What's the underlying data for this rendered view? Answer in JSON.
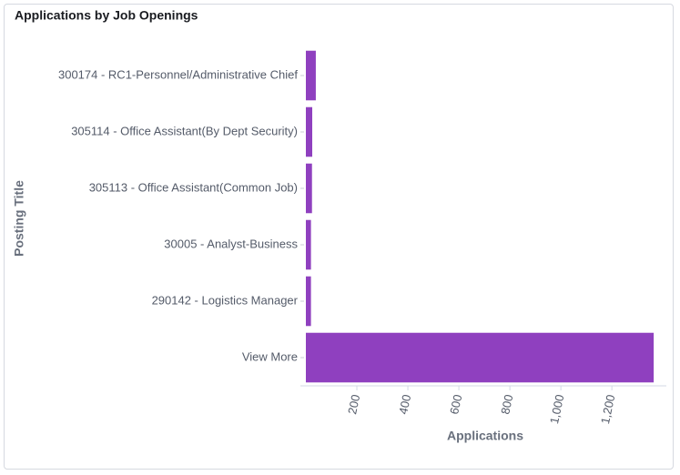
{
  "chart_data": {
    "type": "bar",
    "orientation": "horizontal",
    "title": "Applications by Job Openings",
    "x_label": "Applications",
    "y_label": "Posting Title",
    "categories": [
      "300174 - RC1-Personnel/Administrative Chief",
      "305114 - Office Assistant(By Dept Security)",
      "305113 - Office Assistant(Common Job)",
      "30005 - Analyst-Business",
      "290142 - Logistics Manager",
      "View More"
    ],
    "values": [
      39,
      25,
      24,
      20,
      20,
      1364
    ],
    "color": "#8f40bf",
    "xlim": [
      0,
      1410
    ],
    "xticks": [
      200,
      400,
      600,
      800,
      {
        "value": 1000,
        "label": "1,000"
      },
      {
        "value": 1200,
        "label": "1,200"
      }
    ],
    "grid": false
  }
}
